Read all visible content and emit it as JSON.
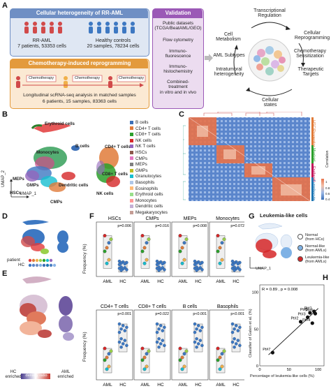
{
  "panelA": {
    "label": "A",
    "hetero_title": "Cellular heterogeneity of RR-AML",
    "rr_title": "RR-AML",
    "rr_sub": "7 patients, 53353 cells",
    "hc_title": "Healthy controls",
    "hc_sub": "20 samples, 78234 cells",
    "reprog_title": "Chemotherapy-induced reprogramming",
    "chemo_label": "Chemotherapy",
    "longitudinal_1": "Longitudinal scRNA-seq analysis in matched samples",
    "longitudinal_2": "6 patients, 15 samples, 83363 cells",
    "validation_title": "Validation",
    "validation_items": [
      "Public datasets\n(TCGA/BeatAML/GEO)",
      "Flow cytometry",
      "Immuno-\nfluorescence",
      "Immuno-\nhistochemistry",
      "Combined-\ntreatment\nin vitro and in vivo"
    ],
    "cycle": {
      "top": "Transcriptional\nRegulation",
      "cell_metabolism": "Cell\nMetabolism",
      "aml_subtypes": "AML Subtypes",
      "intratumoral": "Intratumoral\nheterogeneity",
      "reprogramming": "Cellular\nReprogramming",
      "chemo_sens": "Chemotherapy\nSensitization",
      "targets": "Therapeutic\nTargets",
      "states": "Cellular\nstates"
    }
  },
  "panelB": {
    "label": "B",
    "xlabel": "UMAP_1",
    "ylabel": "UMAP_2",
    "cluster_labels": [
      "Erythroid cells",
      "B cells",
      "Monocytes",
      "CD4+ T cells",
      "MEPs",
      "GMPs",
      "Dendritic cells",
      "CD8+ T cells",
      "HSCs",
      "CMPs",
      "NK cells"
    ],
    "legend": [
      {
        "name": "B cells",
        "color": "#3b6fb6"
      },
      {
        "name": "CD4+ T cells",
        "color": "#e07b39"
      },
      {
        "name": "CD8+ T cells",
        "color": "#2ca02c"
      },
      {
        "name": "NK cells",
        "color": "#d62728"
      },
      {
        "name": "NK T cells",
        "color": "#9467bd"
      },
      {
        "name": "HSCs",
        "color": "#8c564b"
      },
      {
        "name": "CMPs",
        "color": "#e377c2"
      },
      {
        "name": "MEPs",
        "color": "#7f7f7f"
      },
      {
        "name": "GMPs",
        "color": "#bcbd22"
      },
      {
        "name": "Granulocytes",
        "color": "#17becf"
      },
      {
        "name": "Basophils",
        "color": "#aec7e8"
      },
      {
        "name": "Eosinophils",
        "color": "#ffbb78"
      },
      {
        "name": "Erythroid cells",
        "color": "#98df8a"
      },
      {
        "name": "Monocytes",
        "color": "#ff9896"
      },
      {
        "name": "Dendritic cells",
        "color": "#c5b0d5"
      },
      {
        "name": "Megakaryocytes",
        "color": "#c49c94"
      }
    ]
  },
  "panelC": {
    "label": "C",
    "groups": [
      "HSC/Progenitor",
      "Myeloid",
      "Erythroid",
      "Lymphocyte"
    ],
    "group_colors": [
      "#e07b39",
      "#2ca02c",
      "#c2185b",
      "#1f77b4"
    ],
    "colorbar_title": "Correlation",
    "colorbar_ticks": [
      "0.4",
      "0.6",
      "0.8",
      "1"
    ]
  },
  "panelD": {
    "label": "D",
    "row1": "patient",
    "row2": "HC"
  },
  "panelE": {
    "label": "E",
    "left": "HC\nenriched",
    "middle": "density ratio",
    "right": "AML\nenriched"
  },
  "panelF": {
    "label": "F",
    "ylabel": "Frequency (%)",
    "groups": [
      "AML",
      "HC"
    ],
    "top_row": [
      {
        "title": "HSCs",
        "p": "p=0.006"
      },
      {
        "title": "CMPs",
        "p": "p=0.016"
      },
      {
        "title": "MEPs",
        "p": "p=0.008"
      },
      {
        "title": "Monocytes",
        "p": "p=0.072"
      }
    ],
    "bottom_row": [
      {
        "title": "CD4+ T cells",
        "p": "p<0.001"
      },
      {
        "title": "CD8+ T cells",
        "p": "p=0.022"
      },
      {
        "title": "B cells",
        "p": "p<0.001"
      },
      {
        "title": "Basophils",
        "p": "p<0.001"
      }
    ]
  },
  "panelG": {
    "label": "G",
    "title": "Leukemia-like cells",
    "xlabel": "UMAP_1",
    "legend": [
      {
        "name": "Normal\n(from HCs)",
        "color": "#ffffff"
      },
      {
        "name": "Normal-like\n(from AMLs)",
        "color": "#7fb2e5"
      },
      {
        "name": "Leukemia-like\n(from AMLs)",
        "color": "#d62728"
      }
    ]
  },
  "panelH": {
    "label": "H",
    "stat": "R = 0.89 , p = 0.008",
    "xlabel": "Percentage of leukemia-like cells (%)",
    "ylabel": "Classifier of Galen et al. (%)",
    "xticks": [
      "0",
      "50",
      "100"
    ],
    "yticks": [
      "0",
      "50",
      "100"
    ],
    "points": [
      {
        "name": "Pt#7",
        "x": 22,
        "y": 18
      },
      {
        "name": "Pt#2",
        "x": 70,
        "y": 60
      },
      {
        "name": "Pt#4",
        "x": 90,
        "y": 58
      },
      {
        "name": "Pt#3",
        "x": 82,
        "y": 66
      },
      {
        "name": "Pt#5",
        "x": 86,
        "y": 72
      },
      {
        "name": "Pt#1",
        "x": 93,
        "y": 74
      },
      {
        "name": "Pt#6",
        "x": 95,
        "y": 71
      }
    ]
  }
}
